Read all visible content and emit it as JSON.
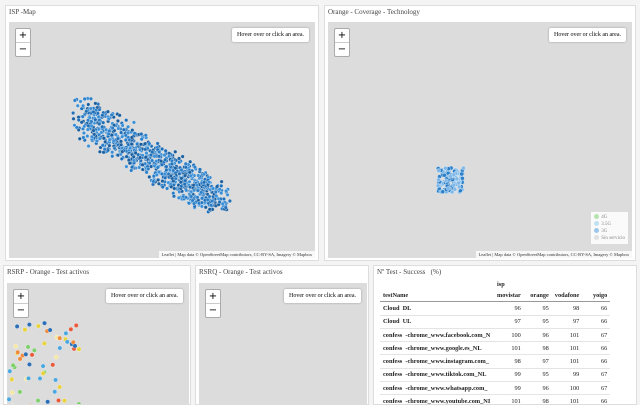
{
  "panels": [
    {
      "title": "ISP -Map"
    },
    {
      "title": "Orange - Coverage - Technology"
    },
    {
      "title": "RSRP - Orange - Test activos"
    },
    {
      "title": "RSRQ - Orange - Test activos"
    },
    {
      "title": "Nº Test - Success   (%)"
    }
  ],
  "map": {
    "zoom_in": "+",
    "zoom_out": "−",
    "info": "Hover over or click an area.",
    "attribution": "Leaflet | Map data © OpenStreetMap contributors, CC-BY-SA, Imagery © Mapbox"
  },
  "legend": [
    "4G",
    "3.5G",
    "3G",
    "Sin servicio"
  ],
  "table": {
    "group_header": "isp",
    "columns": [
      "testName",
      "movistar",
      "orange",
      "vodafone",
      "yoigo"
    ],
    "rows": [
      [
        "Cloud  DL",
        96,
        95,
        98,
        66
      ],
      [
        "Cloud  UL",
        97,
        95,
        97,
        66
      ],
      [
        "confess  -chrome_www.facebook.com_N",
        100,
        96,
        101,
        67
      ],
      [
        "confess  -chrome_www.google.es_NL",
        101,
        98,
        101,
        66
      ],
      [
        "confess  -chrome_www.instagram.com_",
        98,
        97,
        101,
        66
      ],
      [
        "confess  -chrome_www.tiktok.com_NL",
        99,
        95,
        99,
        67
      ],
      [
        "confess  -chrome_www.whatsapp.com_",
        99,
        96,
        100,
        67
      ],
      [
        "confess  -chrome_www.youtube.com_NI",
        101,
        98,
        101,
        66
      ]
    ]
  }
}
